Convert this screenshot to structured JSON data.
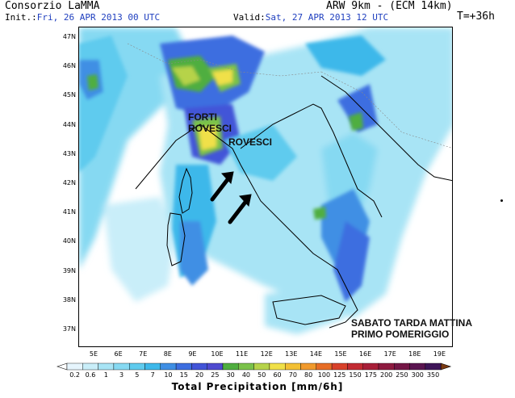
{
  "header": {
    "org": "Consorzio LaMMA",
    "model": "ARW 9km - (ECM 14km)",
    "init_label": "Init.:",
    "init_value": "Fri, 26 APR 2013  00 UTC",
    "valid_label": "Valid:",
    "valid_value": "Sat, 27 APR 2013  12 UTC",
    "lead": "T=+36h"
  },
  "axes": {
    "lat_labels": [
      "47N",
      "46N",
      "45N",
      "44N",
      "43N",
      "42N",
      "41N",
      "40N",
      "39N",
      "38N",
      "37N"
    ],
    "lon_labels": [
      "5E",
      "6E",
      "7E",
      "8E",
      "9E",
      "10E",
      "11E",
      "12E",
      "13E",
      "14E",
      "15E",
      "16E",
      "17E",
      "18E",
      "19E"
    ]
  },
  "annotations": {
    "forti": "FORTI",
    "rovesci1": "ROVESCI",
    "rovesci2": "ROVESCI",
    "sabato": "SABATO TARDA MATTINA",
    "primo": "PRIMO POMERIGGIO"
  },
  "legend": {
    "title": "Total Precipitation [mm/6h]",
    "values": [
      "0.2",
      "0.6",
      "1",
      "3",
      "5",
      "7",
      "10",
      "15",
      "20",
      "25",
      "30",
      "40",
      "50",
      "60",
      "70",
      "80",
      "100",
      "125",
      "150",
      "175",
      "200",
      "250",
      "300",
      "350"
    ],
    "colors": [
      "#e6f5fd",
      "#c9eef9",
      "#a8e4f5",
      "#86d9f2",
      "#5fcbee",
      "#3db8ea",
      "#3f8fe4",
      "#3d6ee0",
      "#4254d8",
      "#4f4ad0",
      "#4fae3f",
      "#7ac24a",
      "#b6d34a",
      "#f0e048",
      "#f3c034",
      "#f19a2c",
      "#e76d26",
      "#d8412a",
      "#c22a32",
      "#a81e38",
      "#8e1a40",
      "#741646",
      "#5a1450",
      "#3e1458"
    ]
  },
  "arrows_icon": "arrow-icon",
  "colors": {
    "header_blue": "#1f3fbf",
    "background": "#ffffff"
  }
}
